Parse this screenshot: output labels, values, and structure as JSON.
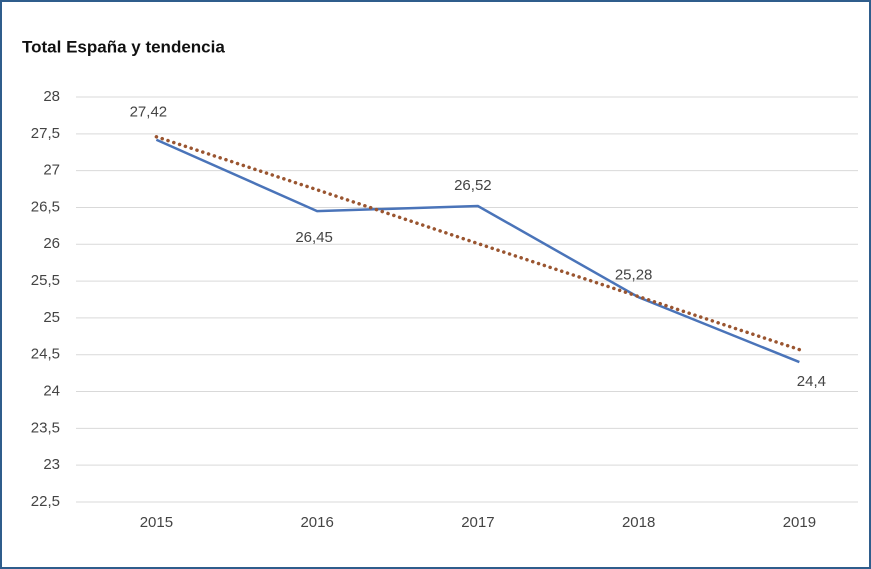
{
  "chart_data": {
    "type": "line",
    "title": "Total España y tendencia",
    "categories": [
      "2015",
      "2016",
      "2017",
      "2018",
      "2019"
    ],
    "series": [
      {
        "color": "#4a74b9",
        "values": [
          27.42,
          26.45,
          26.52,
          25.28,
          24.4
        ],
        "value_labels": [
          "27,42",
          "26,45",
          "26,52",
          "25,28",
          "24,4"
        ]
      },
      {
        "color": "#9a5530",
        "dotted": true,
        "values": [
          27.46,
          26.74,
          26.01,
          25.29,
          24.57
        ]
      }
    ],
    "ylim": [
      22.5,
      28
    ],
    "yticks": [
      {
        "value": 22.5,
        "label": "22,5"
      },
      23,
      {
        "value": 23.5,
        "label": "23,5"
      },
      24,
      {
        "value": 24.5,
        "label": "24,5"
      },
      25,
      {
        "value": 25.5,
        "label": "25,5"
      },
      26,
      {
        "value": 26.5,
        "label": "26,5"
      },
      27,
      {
        "value": 27.5,
        "label": "27,5"
      },
      28
    ],
    "grid": true
  }
}
